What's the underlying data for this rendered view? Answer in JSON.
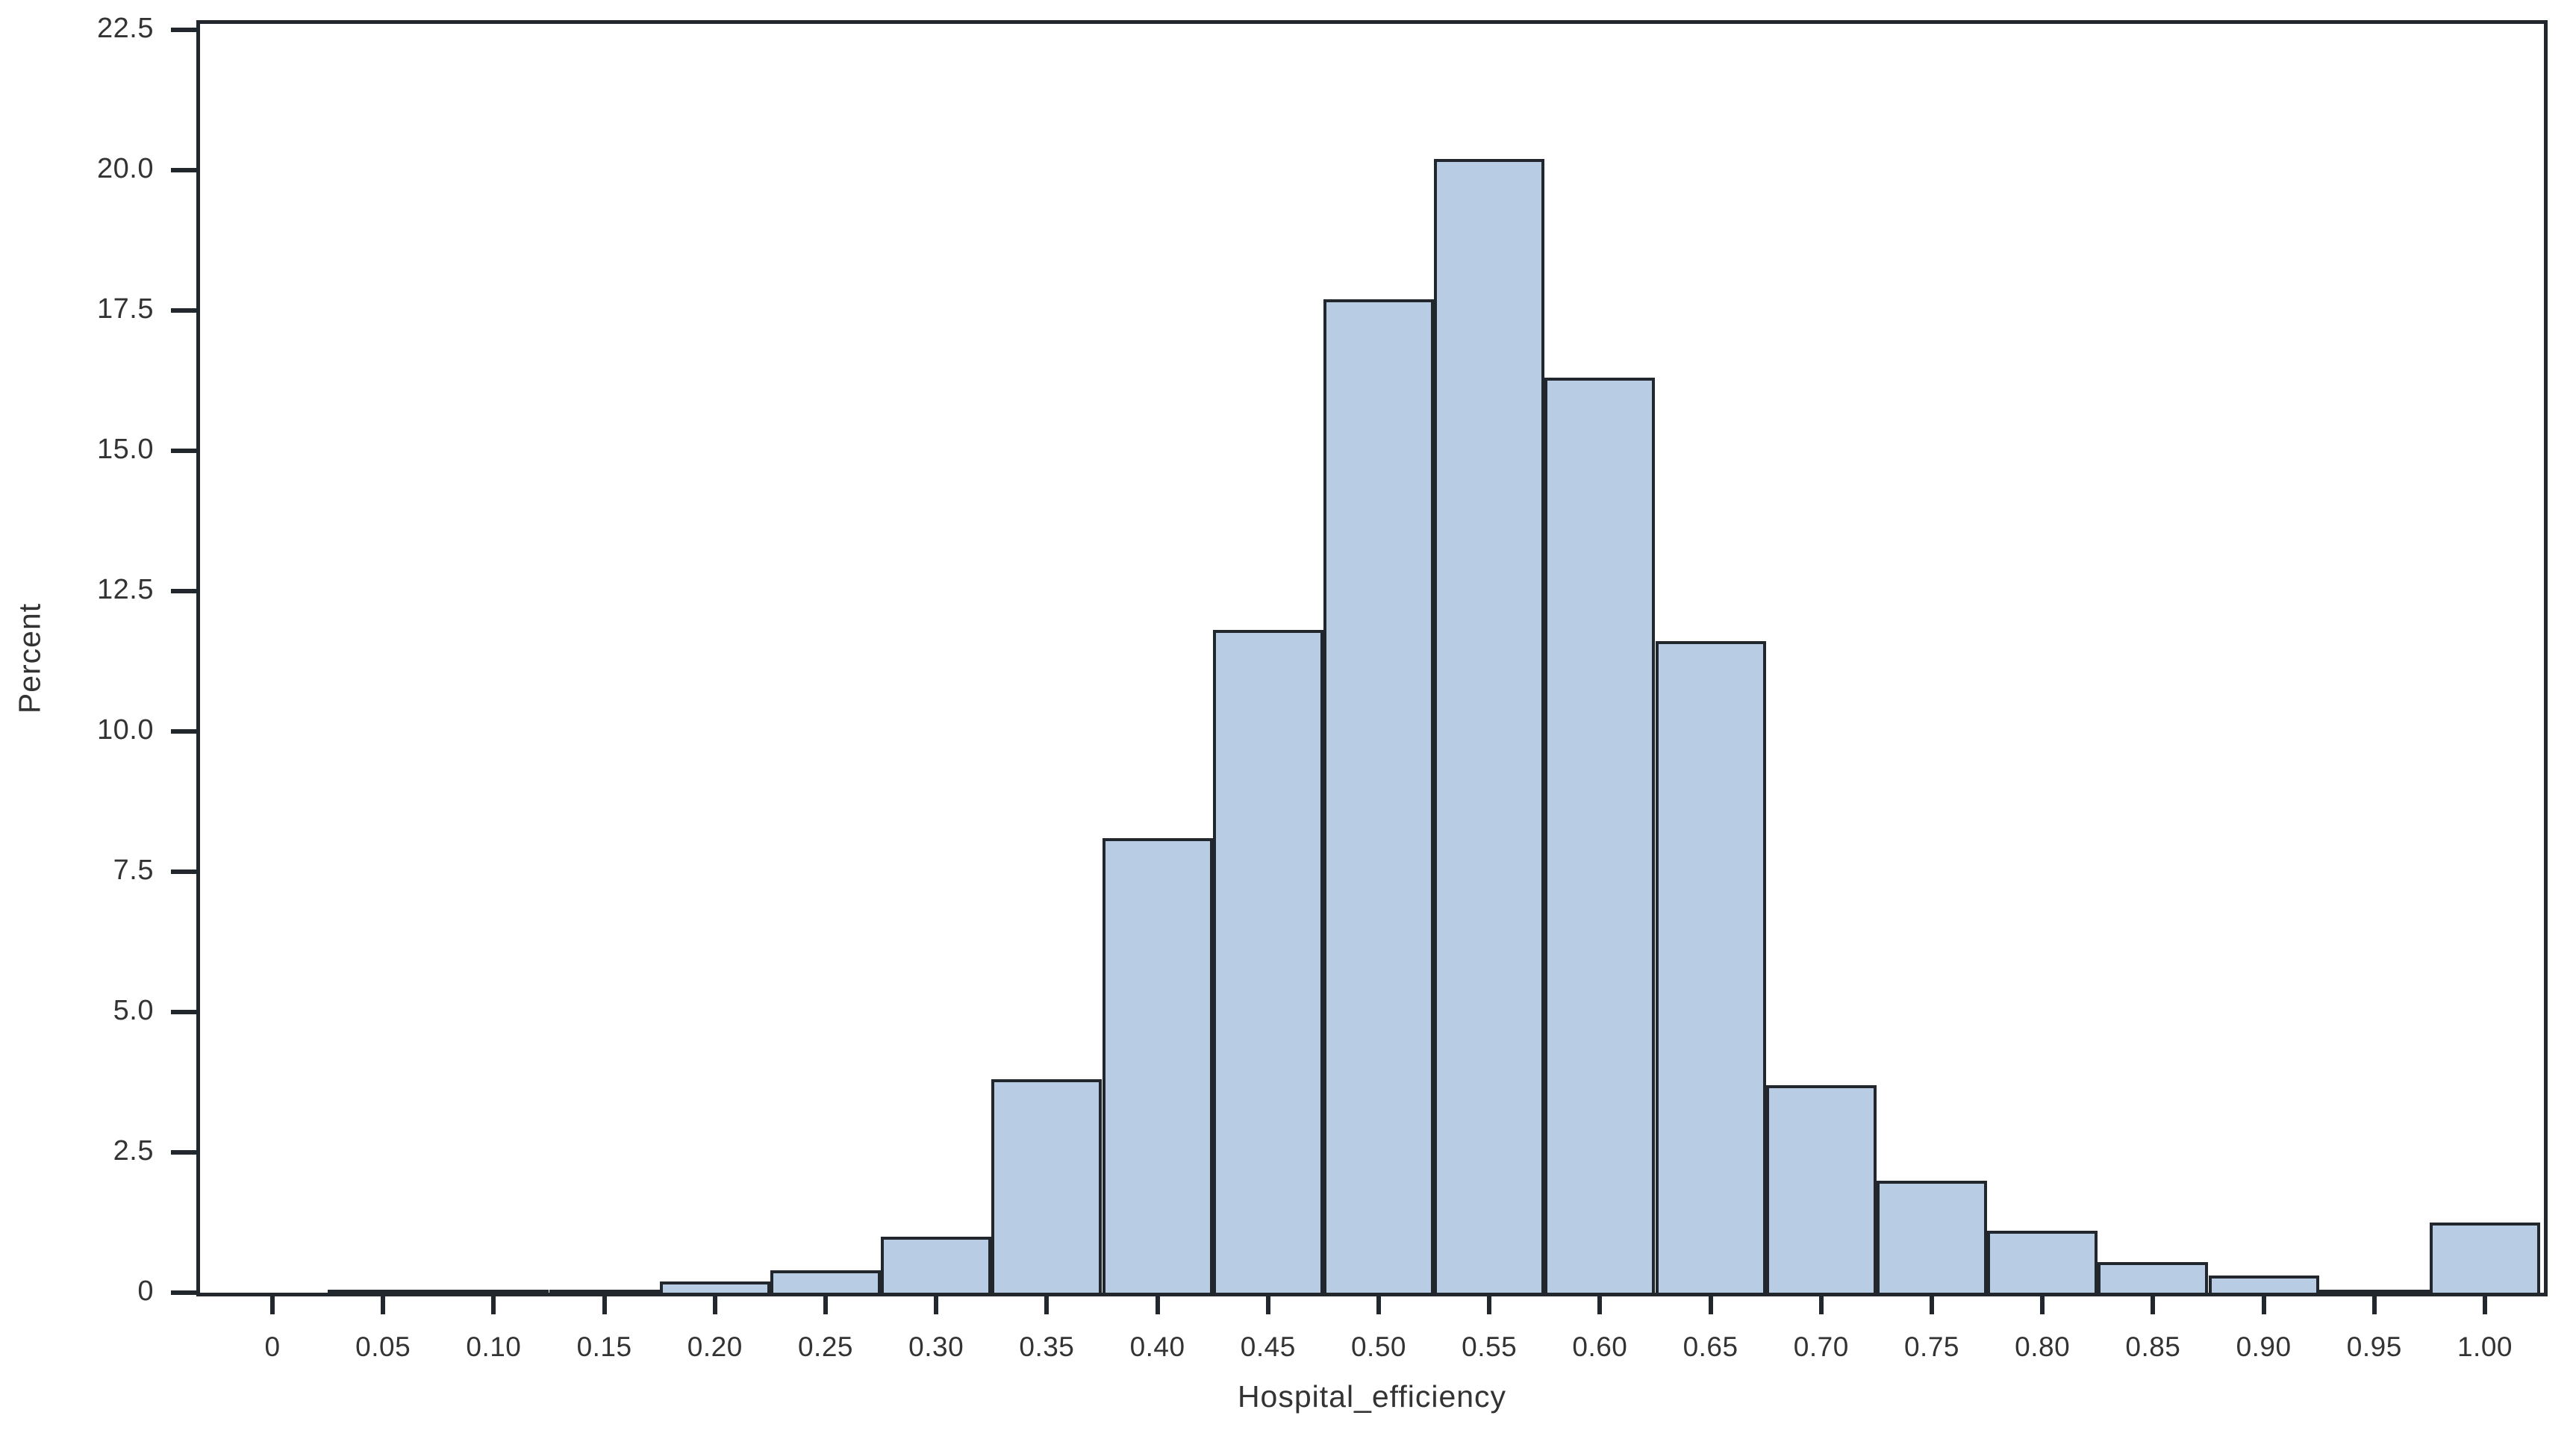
{
  "chart_data": {
    "type": "bar",
    "subtype": "histogram",
    "title": "",
    "xlabel": "Hospital_efficiency",
    "ylabel": "Percent",
    "categories": [
      "0",
      "0.05",
      "0.10",
      "0.15",
      "0.20",
      "0.25",
      "0.30",
      "0.35",
      "0.40",
      "0.45",
      "0.50",
      "0.55",
      "0.60",
      "0.65",
      "0.70",
      "0.75",
      "0.80",
      "0.85",
      "0.90",
      "0.95",
      "1.00"
    ],
    "values": [
      0,
      0.05,
      0.05,
      0.05,
      0.2,
      0.4,
      1.0,
      3.8,
      8.1,
      11.8,
      17.7,
      20.2,
      16.3,
      11.6,
      3.7,
      2.0,
      1.1,
      0.55,
      0.3,
      0.05,
      1.25
    ],
    "bin_width": 0.05,
    "xlim": [
      -0.03,
      1.02
    ],
    "ylim": [
      0,
      22.6
    ],
    "yticks": {
      "values": [
        0,
        2.5,
        5,
        7.5,
        10,
        12.5,
        15,
        17.5,
        20,
        22.5
      ],
      "labels": [
        "0",
        "2.5",
        "5.0",
        "7.5",
        "10.0",
        "12.5",
        "15.0",
        "17.5",
        "20.0",
        "22.5"
      ]
    },
    "grid": false,
    "legend": null,
    "colors": {
      "bar_fill": "#b8cce4",
      "bar_border": "#22272e",
      "axis": "#22272e",
      "text": "#333333",
      "background": "#ffffff"
    }
  }
}
